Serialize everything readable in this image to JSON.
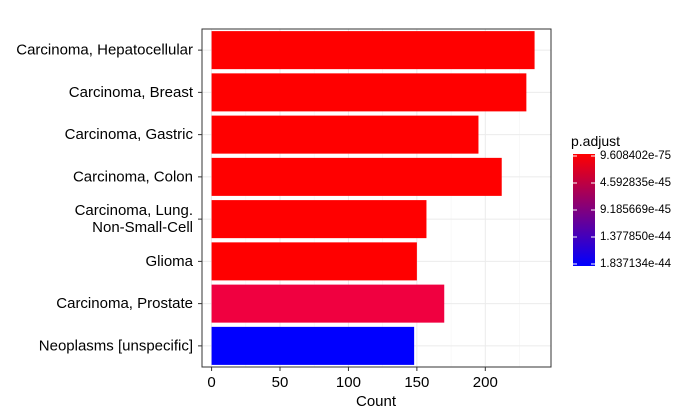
{
  "chart_data": {
    "type": "bar",
    "orientation": "horizontal",
    "categories": [
      [
        "Carcinoma, Hepatocellular"
      ],
      [
        "Carcinoma, Breast"
      ],
      [
        "Carcinoma, Gastric"
      ],
      [
        "Carcinoma, Colon"
      ],
      [
        "Carcinoma, Lung.",
        "Non-Small-Cell"
      ],
      [
        "Glioma"
      ],
      [
        "Carcinoma, Prostate"
      ],
      [
        "Neoplasms [unspecific]"
      ]
    ],
    "values": [
      236,
      230,
      195,
      212,
      157,
      150,
      170,
      148
    ],
    "bar_colors": [
      "#ff0000",
      "#ff0000",
      "#ff0000",
      "#ff0000",
      "#ff0000",
      "#ff0000",
      "#f00040",
      "#0000ff"
    ],
    "xlabel": "Count",
    "ylabel": "",
    "xlim": [
      -7,
      248
    ],
    "xticks": [
      0,
      50,
      100,
      150,
      200
    ],
    "grid": true,
    "legend": {
      "title": "p.adjust",
      "placement": "right",
      "labels": [
        "9.608402e-75",
        "4.592835e-45",
        "9.185669e-45",
        "1.377850e-44",
        "1.837134e-44"
      ],
      "color_top": "#ff0000",
      "color_bottom": "#0000ff"
    }
  }
}
